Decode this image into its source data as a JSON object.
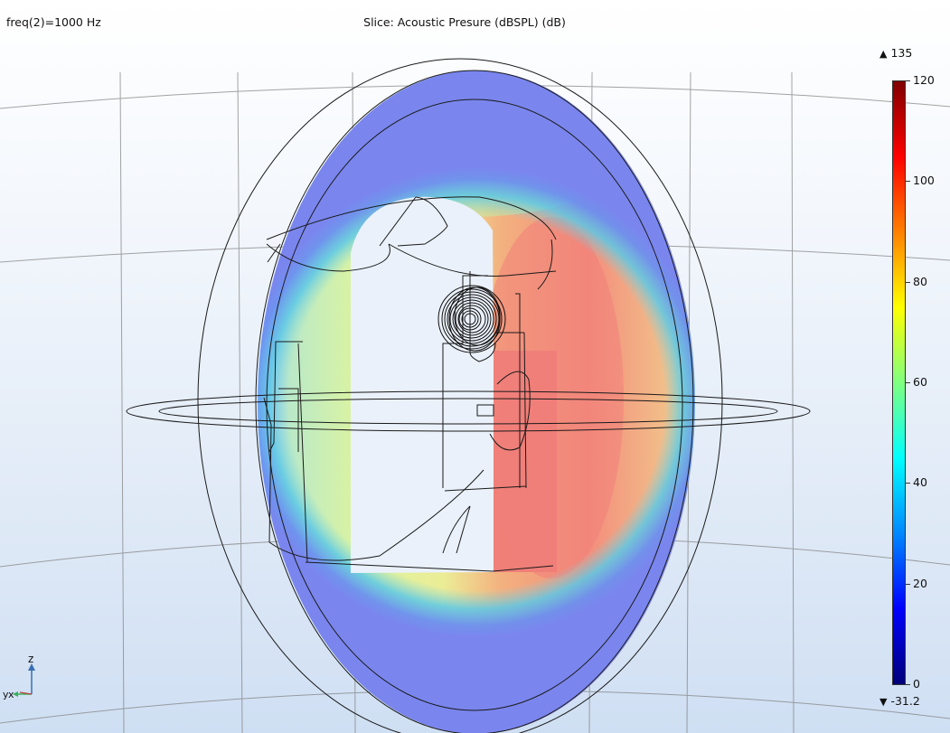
{
  "header": {
    "parameter_label": "freq(2)=1000 Hz",
    "plot_title": "Slice: Acoustic Presure (dBSPL) (dB)"
  },
  "colorbar": {
    "range_max": "135",
    "range_min": "-31.2",
    "max_icon": "triangle-up-icon",
    "min_icon": "triangle-down-icon",
    "ticks": [
      "120",
      "100",
      "80",
      "60",
      "40",
      "20",
      "0"
    ],
    "colormap": [
      "#00007a",
      "#0000ff",
      "#0088ff",
      "#00ffff",
      "#80ff80",
      "#ffff00",
      "#ff8000",
      "#ff0000",
      "#800000"
    ]
  },
  "axes": {
    "z_label": "z",
    "y_label": "y",
    "x_label": "x"
  },
  "colors": {
    "background_top": "#ffffff",
    "background_bottom": "#cfdff3",
    "wireframe": "#1a1a1a"
  }
}
